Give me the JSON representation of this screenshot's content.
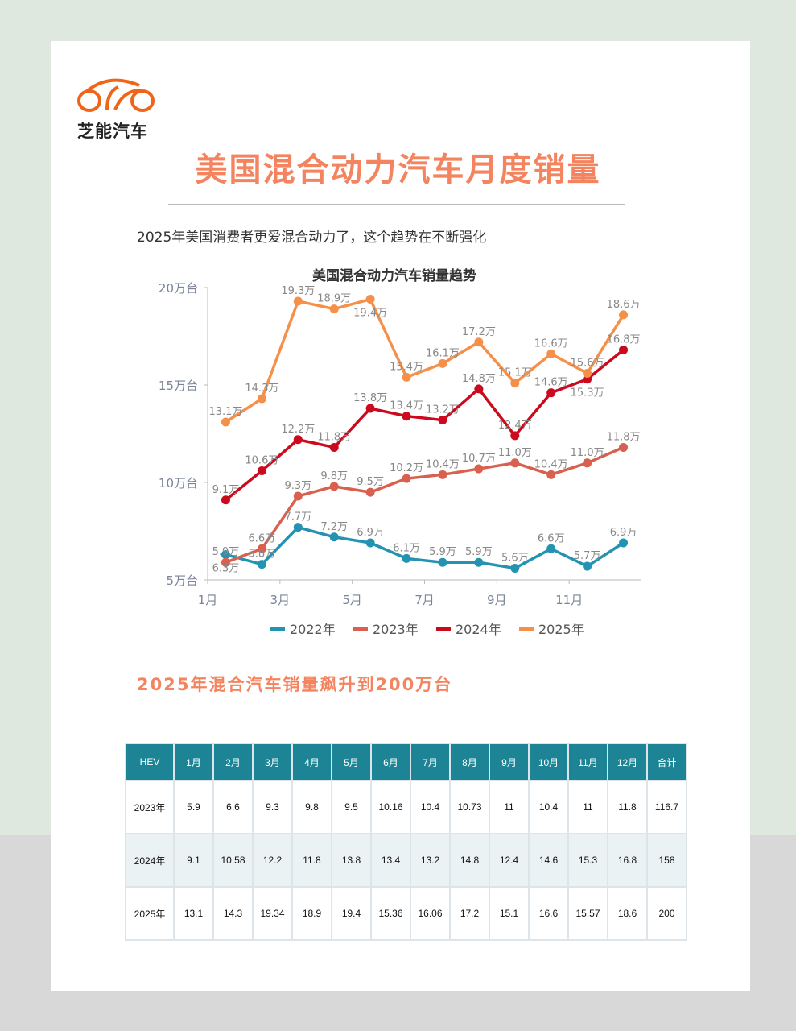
{
  "brand": {
    "name": "芝能汽车",
    "watermark": "芝能汽车",
    "color": "#f06418"
  },
  "title": "美国混合动力汽车月度销量",
  "subtitle": "2025年美国消费者更爱混合动力了，这个趋势在不断强化",
  "section_heading": "2025年混合汽车销量飙升到200万台",
  "chart_data": {
    "type": "line",
    "title": "美国混合动力汽车销量趋势",
    "categories": [
      "1月",
      "2月",
      "3月",
      "4月",
      "5月",
      "6月",
      "7月",
      "8月",
      "9月",
      "10月",
      "11月",
      "12月"
    ],
    "x_tick_labels": [
      "1月",
      "3月",
      "5月",
      "7月",
      "9月",
      "11月"
    ],
    "y_tick_labels": [
      "5万台",
      "10万台",
      "15万台",
      "20万台"
    ],
    "ylim": [
      5,
      20
    ],
    "ylabel_unit": "万台",
    "legend": "bottom",
    "grid": false,
    "series": [
      {
        "name": "2022年",
        "color": "#2393b1",
        "values": [
          6.3,
          5.8,
          7.7,
          7.2,
          6.9,
          6.1,
          5.9,
          5.9,
          5.6,
          6.6,
          5.7,
          6.9
        ],
        "labels": [
          "6.3万",
          "5.8万",
          "7.7万",
          "7.2万",
          "6.9万",
          "6.1万",
          "5.9万",
          "5.9万",
          "5.6万",
          "6.6万",
          "5.7万",
          "6.9万"
        ]
      },
      {
        "name": "2023年",
        "color": "#d9604f",
        "values": [
          5.9,
          6.6,
          9.3,
          9.8,
          9.5,
          10.2,
          10.4,
          10.7,
          11.0,
          10.4,
          11.0,
          11.8
        ],
        "labels": [
          "5.9万",
          "6.6万",
          "9.3万",
          "9.8万",
          "9.5万",
          "10.2万",
          "10.4万",
          "10.7万",
          "11.0万",
          "10.4万",
          "11.0万",
          "11.8万"
        ]
      },
      {
        "name": "2024年",
        "color": "#cc0a1e",
        "values": [
          9.1,
          10.6,
          12.2,
          11.8,
          13.8,
          13.4,
          13.2,
          14.8,
          12.4,
          14.6,
          15.3,
          16.8
        ],
        "labels": [
          "9.1万",
          "10.6万",
          "12.2万",
          "11.8万",
          "13.8万",
          "13.4万",
          "13.2万",
          "14.8万",
          "12.4万",
          "14.6万",
          "15.3万",
          "16.8万"
        ]
      },
      {
        "name": "2025年",
        "color": "#f5904a",
        "values": [
          13.1,
          14.3,
          19.3,
          18.9,
          19.4,
          15.4,
          16.1,
          17.2,
          15.1,
          16.6,
          15.6,
          18.6
        ],
        "labels": [
          "13.1万",
          "14.3万",
          "19.3万",
          "18.9万",
          "19.4万",
          "15.4万",
          "16.1万",
          "17.2万",
          "15.1万",
          "16.6万",
          "15.6万",
          "18.6万"
        ]
      }
    ]
  },
  "table": {
    "headers": [
      "HEV",
      "1月",
      "2月",
      "3月",
      "4月",
      "5月",
      "6月",
      "7月",
      "8月",
      "9月",
      "10月",
      "11月",
      "12月",
      "合计"
    ],
    "rows": [
      [
        "2023年",
        "5.9",
        "6.6",
        "9.3",
        "9.8",
        "9.5",
        "10.16",
        "10.4",
        "10.73",
        "11",
        "10.4",
        "11",
        "11.8",
        "116.7"
      ],
      [
        "2024年",
        "9.1",
        "10.58",
        "12.2",
        "11.8",
        "13.8",
        "13.4",
        "13.2",
        "14.8",
        "12.4",
        "14.6",
        "15.3",
        "16.8",
        "158"
      ],
      [
        "2025年",
        "13.1",
        "14.3",
        "19.34",
        "18.9",
        "19.4",
        "15.36",
        "16.06",
        "17.2",
        "15.1",
        "16.6",
        "15.57",
        "18.6",
        "200"
      ]
    ]
  }
}
